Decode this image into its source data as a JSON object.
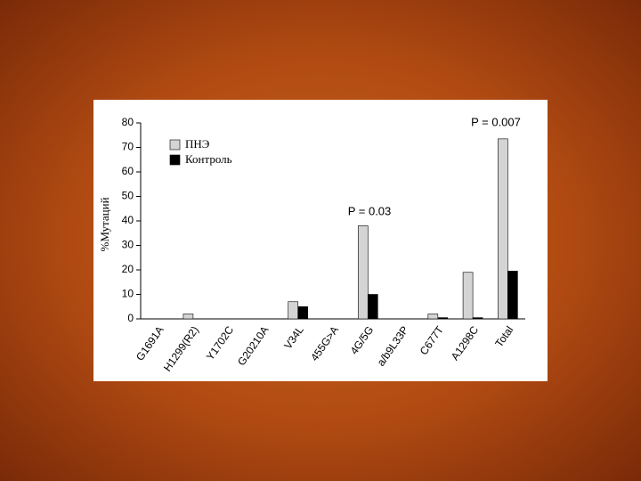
{
  "chart_data": {
    "type": "bar",
    "y_label": "%Мутаций",
    "categories": [
      "G1691A",
      "H1299(R2)",
      "Y1702C",
      "G20210A",
      "V34L",
      "455G>A",
      "4G/5G",
      "a/b9L33P",
      "C677T",
      "A1298C",
      "Total"
    ],
    "series": [
      {
        "name": "ПНЭ",
        "color": "#d4d4d4",
        "values": [
          0,
          2,
          0,
          0,
          7,
          0,
          38,
          0,
          2,
          19,
          73.5
        ]
      },
      {
        "name": "Контроль",
        "color": "#000000",
        "values": [
          0,
          0,
          0,
          0,
          5,
          0,
          10,
          0,
          0.5,
          0.5,
          19.5
        ]
      }
    ],
    "ylim": [
      0,
      80
    ],
    "yticks": [
      0,
      10,
      20,
      30,
      40,
      50,
      60,
      70,
      80
    ],
    "annotations": [
      "P = 0.03",
      "P = 0.007"
    ],
    "legend": "upper-left"
  }
}
